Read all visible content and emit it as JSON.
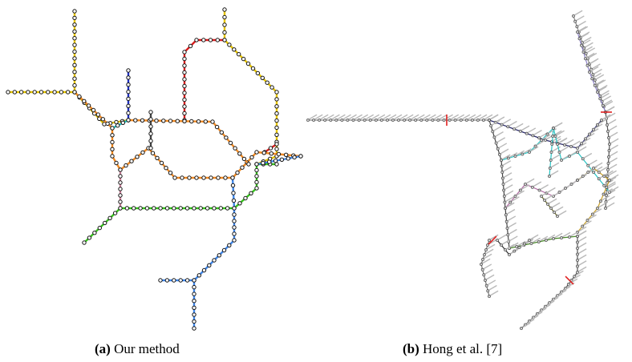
{
  "panels": [
    {
      "id": "a",
      "label": "(a)",
      "caption": "Our method"
    },
    {
      "id": "b",
      "label": "(b)",
      "caption": "Hong et al. [7]"
    }
  ],
  "colors": {
    "yellow": "#e6c400",
    "orange": "#f08a24",
    "red": "#d81e1e",
    "green": "#35c21b",
    "darkblue": "#1f2fbf",
    "lightblue": "#3f86e8",
    "cyan": "#27c3c3",
    "pink": "#c9829a",
    "gray": "#9a9a9a"
  }
}
